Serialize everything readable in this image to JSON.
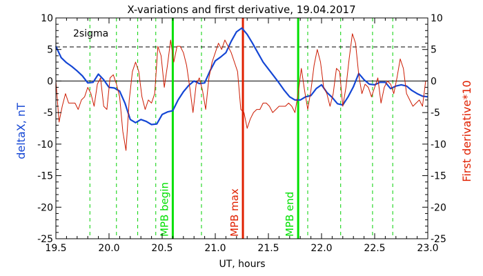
{
  "chart_data": {
    "type": "line",
    "title": "X-variations and first derivative, 19.04.2017",
    "xlabel": "UT, hours",
    "ylabel_left": "deltaX, nT",
    "ylabel_right": "First derivative*10",
    "xlim": [
      19.5,
      23.0
    ],
    "ylim": [
      -25,
      10
    ],
    "xticks": [
      "19.5",
      "20.0",
      "20.5",
      "21.0",
      "21.5",
      "22.0",
      "22.5",
      "23.0"
    ],
    "yticks": [
      "10",
      "5",
      "0",
      "-5",
      "-10",
      "-15",
      "-20",
      "-25"
    ],
    "sigma_label": "2sigma",
    "sigma_value": 5.4,
    "zero_line": 0,
    "dashed_verticals": [
      19.82,
      20.07,
      20.27,
      20.44,
      20.87,
      21.87,
      22.18,
      22.48,
      22.67
    ],
    "markers": [
      {
        "label": "MPB begin",
        "x": 20.6,
        "color": "#00e000"
      },
      {
        "label": "MPB max",
        "x": 21.26,
        "color": "#e02000"
      },
      {
        "label": "MPB end",
        "x": 21.78,
        "color": "#00e000"
      }
    ],
    "series": [
      {
        "name": "deltaX, nT",
        "color": "#1446d4",
        "x": [
          19.5,
          19.55,
          19.6,
          19.65,
          19.7,
          19.75,
          19.8,
          19.85,
          19.9,
          19.95,
          20.0,
          20.05,
          20.1,
          20.15,
          20.2,
          20.25,
          20.3,
          20.35,
          20.4,
          20.45,
          20.5,
          20.55,
          20.6,
          20.65,
          20.7,
          20.75,
          20.8,
          20.85,
          20.9,
          20.95,
          21.0,
          21.05,
          21.1,
          21.15,
          21.2,
          21.25,
          21.3,
          21.35,
          21.4,
          21.45,
          21.5,
          21.55,
          21.6,
          21.65,
          21.7,
          21.75,
          21.8,
          21.85,
          21.9,
          21.95,
          22.0,
          22.05,
          22.1,
          22.15,
          22.2,
          22.25,
          22.3,
          22.35,
          22.4,
          22.45,
          22.5,
          22.55,
          22.6,
          22.65,
          22.7,
          22.75,
          22.8,
          22.85,
          22.9,
          22.95,
          23.0
        ],
        "values": [
          5.5,
          3.7,
          2.9,
          2.3,
          1.6,
          0.8,
          -0.3,
          -0.2,
          1.1,
          0.2,
          -1.0,
          -1.1,
          -1.6,
          -3.5,
          -6.1,
          -6.6,
          -6.1,
          -6.4,
          -6.9,
          -6.8,
          -5.3,
          -4.9,
          -4.7,
          -3.0,
          -1.7,
          -0.7,
          0.0,
          -0.4,
          -0.3,
          1.6,
          3.2,
          3.8,
          4.5,
          6.3,
          7.8,
          8.4,
          7.4,
          6.0,
          4.5,
          3.0,
          1.9,
          0.8,
          -0.3,
          -1.5,
          -2.5,
          -3.0,
          -3.0,
          -2.5,
          -2.3,
          -1.2,
          -0.6,
          -1.8,
          -2.6,
          -3.6,
          -3.8,
          -2.5,
          -0.9,
          1.2,
          0.2,
          -0.5,
          -0.6,
          -0.2,
          -0.2,
          -1.2,
          -0.8,
          -0.6,
          -0.8,
          -1.5,
          -2.0,
          -2.4,
          -2.5
        ]
      },
      {
        "name": "First derivative*10",
        "color": "#cc1a00",
        "x": [
          19.5,
          19.53,
          19.56,
          19.59,
          19.62,
          19.65,
          19.68,
          19.71,
          19.74,
          19.77,
          19.8,
          19.83,
          19.86,
          19.89,
          19.92,
          19.95,
          19.98,
          20.01,
          20.04,
          20.07,
          20.1,
          20.13,
          20.16,
          20.19,
          20.22,
          20.25,
          20.28,
          20.31,
          20.34,
          20.37,
          20.4,
          20.43,
          20.46,
          20.49,
          20.52,
          20.55,
          20.58,
          20.61,
          20.64,
          20.67,
          20.7,
          20.73,
          20.76,
          20.79,
          20.82,
          20.85,
          20.88,
          20.91,
          20.94,
          20.97,
          21.0,
          21.03,
          21.06,
          21.09,
          21.12,
          21.15,
          21.18,
          21.21,
          21.24,
          21.27,
          21.3,
          21.33,
          21.36,
          21.39,
          21.42,
          21.45,
          21.48,
          21.51,
          21.54,
          21.57,
          21.6,
          21.63,
          21.66,
          21.69,
          21.72,
          21.75,
          21.78,
          21.81,
          21.84,
          21.87,
          21.9,
          21.93,
          21.96,
          21.99,
          22.02,
          22.05,
          22.08,
          22.11,
          22.14,
          22.17,
          22.2,
          22.23,
          22.26,
          22.29,
          22.32,
          22.35,
          22.38,
          22.41,
          22.44,
          22.47,
          22.5,
          22.53,
          22.56,
          22.59,
          22.62,
          22.65,
          22.68,
          22.71,
          22.74,
          22.77,
          22.8,
          22.83,
          22.86,
          22.89,
          22.92,
          22.95,
          22.98,
          23.0
        ],
        "values": [
          0.0,
          -6.5,
          -4.0,
          -2.0,
          -3.5,
          -3.5,
          -3.5,
          -4.5,
          -3.0,
          -2.5,
          -1.0,
          -2.0,
          -4.0,
          -0.5,
          0.5,
          -4.0,
          -4.5,
          0.5,
          1.0,
          -0.5,
          -2.5,
          -8.0,
          -11.0,
          -3.0,
          1.5,
          3.0,
          1.5,
          -2.5,
          -4.5,
          -3.0,
          -3.5,
          -2.0,
          5.5,
          4.0,
          -1.0,
          2.5,
          6.5,
          3.0,
          5.5,
          5.5,
          4.5,
          2.5,
          -1.0,
          -5.0,
          -0.5,
          0.5,
          -1.5,
          -4.5,
          0.5,
          3.0,
          4.5,
          6.0,
          5.0,
          6.5,
          5.5,
          4.5,
          3.0,
          1.5,
          -4.5,
          -5.0,
          -7.5,
          -6.0,
          -5.0,
          -4.5,
          -4.5,
          -3.5,
          -3.5,
          -4.0,
          -5.0,
          -4.5,
          -4.0,
          -4.0,
          -4.0,
          -3.5,
          -4.0,
          -5.0,
          -2.0,
          2.0,
          -1.5,
          -4.5,
          -1.5,
          2.5,
          5.0,
          3.0,
          -1.0,
          -2.0,
          -4.0,
          -2.0,
          2.0,
          1.5,
          -4.0,
          -1.0,
          3.5,
          7.5,
          6.0,
          1.0,
          -2.0,
          -0.5,
          -1.0,
          -2.5,
          -1.0,
          0.5,
          -3.5,
          -1.0,
          0.0,
          -0.5,
          -2.0,
          0.5,
          3.5,
          2.0,
          -2.0,
          -3.0,
          -4.0,
          -3.5,
          -3.0,
          -4.0,
          0.0,
          0.0
        ]
      }
    ]
  }
}
